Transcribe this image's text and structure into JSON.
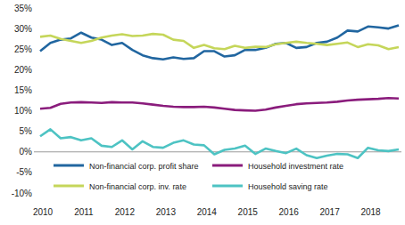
{
  "chart_data": {
    "type": "line",
    "categories": [
      "2010",
      null,
      null,
      null,
      "2011",
      null,
      null,
      null,
      "2012",
      null,
      null,
      null,
      "2013",
      null,
      null,
      null,
      "2014",
      null,
      null,
      null,
      "2015",
      null,
      null,
      null,
      "2016",
      null,
      null,
      null,
      "2017",
      null,
      null,
      null,
      "2018",
      null,
      null,
      null
    ],
    "series": [
      {
        "name": "Non-financial corp. profit share",
        "color": "#2166a0",
        "values": [
          24.5,
          26.5,
          27.3,
          27.6,
          29.0,
          27.8,
          27.3,
          26.0,
          26.5,
          24.8,
          23.5,
          22.8,
          22.5,
          23.0,
          22.6,
          22.8,
          24.5,
          24.5,
          23.2,
          23.5,
          24.8,
          24.8,
          25.3,
          26.3,
          26.5,
          25.3,
          25.5,
          26.5,
          26.8,
          27.8,
          29.5,
          29.3,
          30.5,
          30.3,
          30.0,
          30.8
        ]
      },
      {
        "name": "Non-financial corp. inv. rate",
        "color": "#c5d65a",
        "values": [
          28.0,
          28.3,
          27.5,
          27.0,
          26.5,
          27.0,
          27.8,
          28.3,
          28.6,
          28.2,
          28.3,
          28.7,
          28.5,
          27.3,
          27.0,
          25.3,
          26.0,
          25.2,
          25.0,
          25.8,
          25.3,
          25.6,
          25.5,
          26.2,
          26.5,
          26.8,
          26.5,
          26.3,
          26.0,
          26.3,
          26.6,
          25.5,
          26.2,
          25.9,
          25.0,
          25.5
        ]
      },
      {
        "name": "Household investment rate",
        "color": "#8a1c7c",
        "values": [
          10.5,
          10.7,
          11.7,
          12.0,
          12.1,
          12.0,
          11.9,
          12.1,
          12.0,
          12.0,
          11.8,
          11.5,
          11.2,
          11.0,
          10.9,
          10.9,
          11.0,
          10.8,
          10.5,
          10.2,
          10.1,
          10.0,
          10.3,
          10.8,
          11.2,
          11.6,
          11.8,
          11.9,
          12.0,
          12.2,
          12.5,
          12.7,
          12.8,
          12.9,
          13.1,
          13.0
        ]
      },
      {
        "name": "Household saving rate",
        "color": "#4dc3c3",
        "values": [
          3.8,
          5.5,
          3.3,
          3.6,
          2.8,
          3.3,
          1.5,
          1.2,
          2.8,
          0.6,
          2.6,
          1.2,
          1.0,
          2.2,
          2.8,
          1.8,
          1.6,
          -0.6,
          0.5,
          0.8,
          1.5,
          -0.5,
          0.8,
          0.2,
          -0.3,
          0.8,
          -0.8,
          -1.5,
          -0.9,
          -0.5,
          -0.6,
          -1.5,
          1.0,
          0.4,
          0.2,
          0.6
        ]
      }
    ],
    "ylim": [
      -10,
      35
    ],
    "yticks": [
      {
        "value": -10,
        "label": "-10%"
      },
      {
        "value": -5,
        "label": "-5%"
      },
      {
        "value": 0,
        "label": "0%"
      },
      {
        "value": 5,
        "label": "5%"
      },
      {
        "value": 10,
        "label": "10%"
      },
      {
        "value": 15,
        "label": "15%"
      },
      {
        "value": 20,
        "label": "20%"
      },
      {
        "value": 25,
        "label": "25%"
      },
      {
        "value": 30,
        "label": "30%"
      },
      {
        "value": 35,
        "label": "35%"
      }
    ],
    "grid": false,
    "legend": "bottom"
  }
}
